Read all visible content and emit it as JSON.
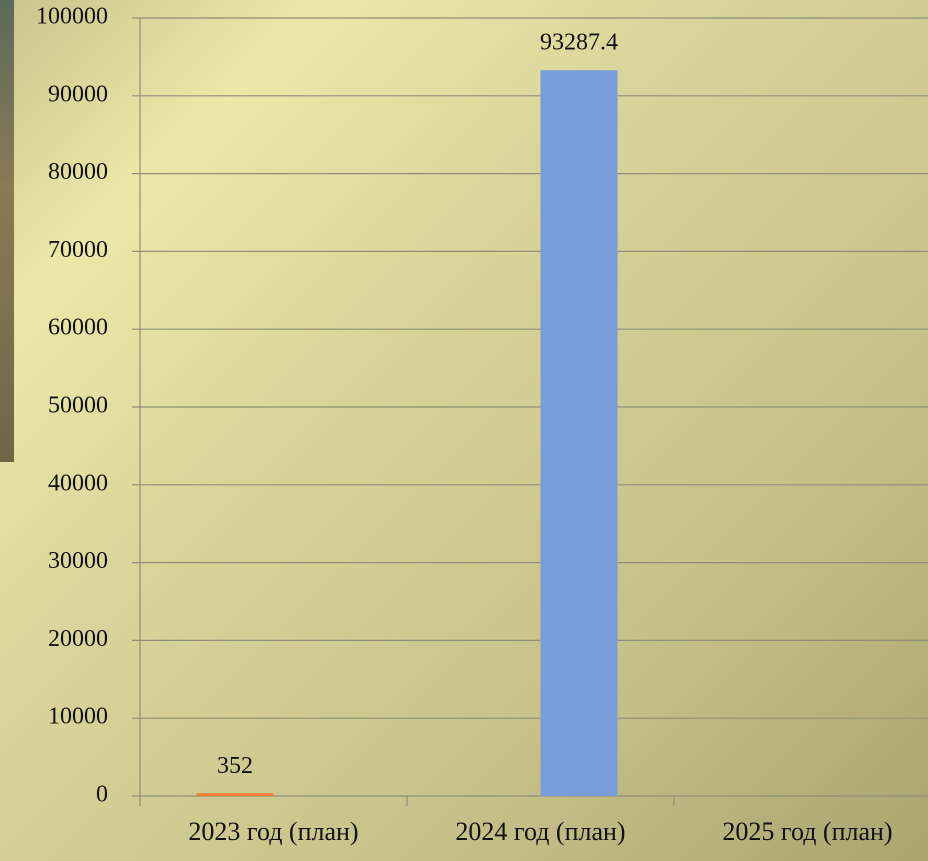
{
  "chart_data": {
    "type": "bar",
    "categories": [
      "2023 год (план)",
      "2024 год (план)",
      "2025 год (план)"
    ],
    "series": [
      {
        "color": "#ed7d31",
        "values": [
          352,
          null,
          null
        ]
      },
      {
        "color": "#7a9cd9",
        "values": [
          null,
          93287.4,
          null
        ]
      }
    ],
    "ylim": [
      0,
      100000
    ],
    "yticks": [
      0,
      10000,
      20000,
      30000,
      40000,
      50000,
      60000,
      70000,
      80000,
      90000,
      100000
    ],
    "grid": true
  }
}
